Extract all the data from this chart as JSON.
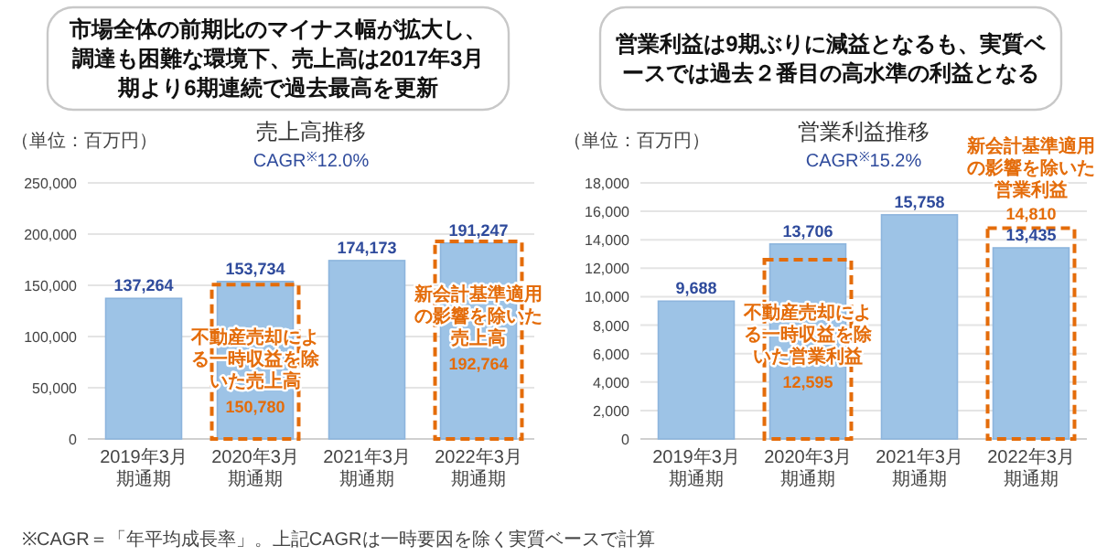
{
  "chart_data": [
    {
      "type": "bar",
      "title": "売上高推移",
      "categories": [
        "2019年3月期通期",
        "2020年3月期通期",
        "2021年3月期通期",
        "2022年3月期通期"
      ],
      "series": [
        {
          "color": "#9dc3e6",
          "values": [
            137264,
            153734,
            174173,
            191247
          ],
          "value_labels": [
            "137,264",
            "153,734",
            "174,173",
            "191,247"
          ]
        },
        {
          "color": "#e46c0a",
          "line_style": "dashed",
          "values": [
            null,
            150780,
            null,
            192764
          ],
          "value_labels": [
            null,
            "150,780",
            null,
            "192,764"
          ]
        }
      ],
      "ylim": [
        0,
        250000
      ],
      "yticks": [
        0,
        {
          "value": 50000,
          "label": "50,000"
        },
        {
          "value": 100000,
          "label": "100,000"
        },
        {
          "value": 150000,
          "label": "150,000"
        },
        {
          "value": 200000,
          "label": "200,000"
        },
        {
          "value": 250000,
          "label": "250,000"
        }
      ],
      "grid": "y",
      "annotations": [
        "市場全体の前期比のマイナス幅が拡大し、調達も困難な環境下、売上高は2017年3月期より6期連続で過去最高を更新",
        "（単位：百万円）",
        "CAGR$^{※}$12.0%",
        "※CAGR＝「年平均成長率」。上記CAGRは一時要因を除く実質ベースで計算",
        {
          "text": "不動産売却による一時収益を除いた売上高",
          "x": "2020年3月期通期",
          "y": 150780
        },
        {
          "text": "新会計基準適用の影響を除いた売上高",
          "x": "2022年3月期通期",
          "y": 192764
        }
      ]
    },
    {
      "type": "bar",
      "title": "営業利益推移",
      "categories": [
        "2019年3月期通期",
        "2020年3月期通期",
        "2021年3月期通期",
        "2022年3月期通期"
      ],
      "series": [
        {
          "color": "#9dc3e6",
          "values": [
            9688,
            13706,
            15758,
            13435
          ],
          "value_labels": [
            "9,688",
            "13,706",
            "15,758",
            "13,435"
          ]
        },
        {
          "color": "#e46c0a",
          "line_style": "dashed",
          "values": [
            null,
            12595,
            null,
            14810
          ],
          "value_labels": [
            null,
            "12,595",
            null,
            "14,810"
          ]
        }
      ],
      "ylim": [
        0,
        18000
      ],
      "yticks": [
        0,
        {
          "value": 2000,
          "label": "2,000"
        },
        {
          "value": 4000,
          "label": "4,000"
        },
        {
          "value": 6000,
          "label": "6,000"
        },
        {
          "value": 8000,
          "label": "8,000"
        },
        {
          "value": 10000,
          "label": "10,000"
        },
        {
          "value": 12000,
          "label": "12,000"
        },
        {
          "value": 14000,
          "label": "14,000"
        },
        {
          "value": 16000,
          "label": "16,000"
        },
        {
          "value": 18000,
          "label": "18,000"
        }
      ],
      "grid": "y",
      "annotations": [
        "営業利益は9期ぶりに減益となるも、実質ベースでは過去２番目の高水準の利益となる",
        "（単位：百万円）",
        "CAGR$^{※}$15.2%",
        {
          "text": "不動産売却による一時収益を除いた営業利益",
          "x": "2020年3月期通期",
          "y": 12595
        },
        {
          "text": "新会計基準適用の影響を除いた営業利益",
          "x": "2022年3月期通期",
          "y": 14810
        }
      ]
    }
  ]
}
